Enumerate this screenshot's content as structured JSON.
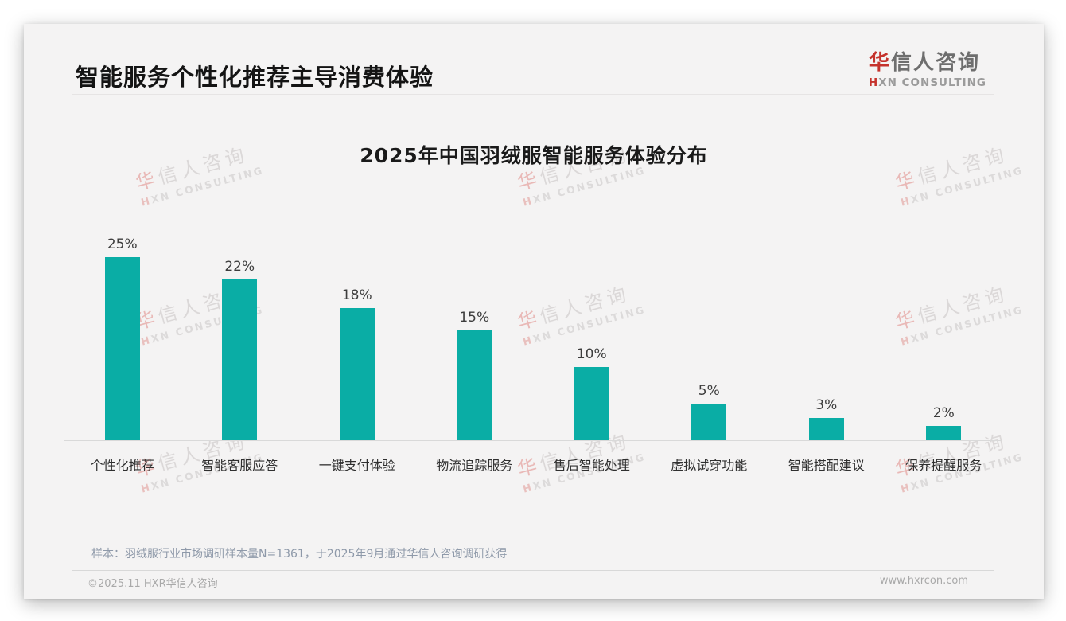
{
  "header": {
    "title": "智能服务个性化推荐主导消费体验",
    "logo": {
      "name_accent": "华",
      "name_rest": "信人咨询",
      "subtitle_accent": "H",
      "subtitle_rest": "XN CONSULTING"
    }
  },
  "chart_data": {
    "type": "bar",
    "title": "2025年中国羽绒服智能服务体验分布",
    "categories": [
      "个性化推荐",
      "智能客服应答",
      "一键支付体验",
      "物流追踪服务",
      "售后智能处理",
      "虚拟试穿功能",
      "智能搭配建议",
      "保养提醒服务"
    ],
    "values": [
      25,
      22,
      18,
      15,
      10,
      5,
      3,
      2
    ],
    "unit": "%",
    "value_labels": [
      "25%",
      "22%",
      "18%",
      "15%",
      "10%",
      "5%",
      "3%",
      "2%"
    ],
    "bar_color": "#0aada5",
    "ylim": [
      0,
      25
    ],
    "grid": false,
    "legend": false,
    "xlabel": "",
    "ylabel": ""
  },
  "watermark": {
    "line1_accent": "华",
    "line1_rest": "信人咨询",
    "line2_accent": "H",
    "line2_rest": "XN CONSULTING"
  },
  "note": "样本：羽绒服行业市场调研样本量N=1361，于2025年9月通过华信人咨询调研获得",
  "footer": {
    "left": "©2025.11 HXR华信人咨询",
    "right": "www.hxrcon.com"
  },
  "colors": {
    "bar": "#0aada5",
    "logo_red": "#c5322c",
    "card_bg": "#f4f3f3",
    "axis_line": "#d9d9d9",
    "note_text": "#8e99a9"
  }
}
